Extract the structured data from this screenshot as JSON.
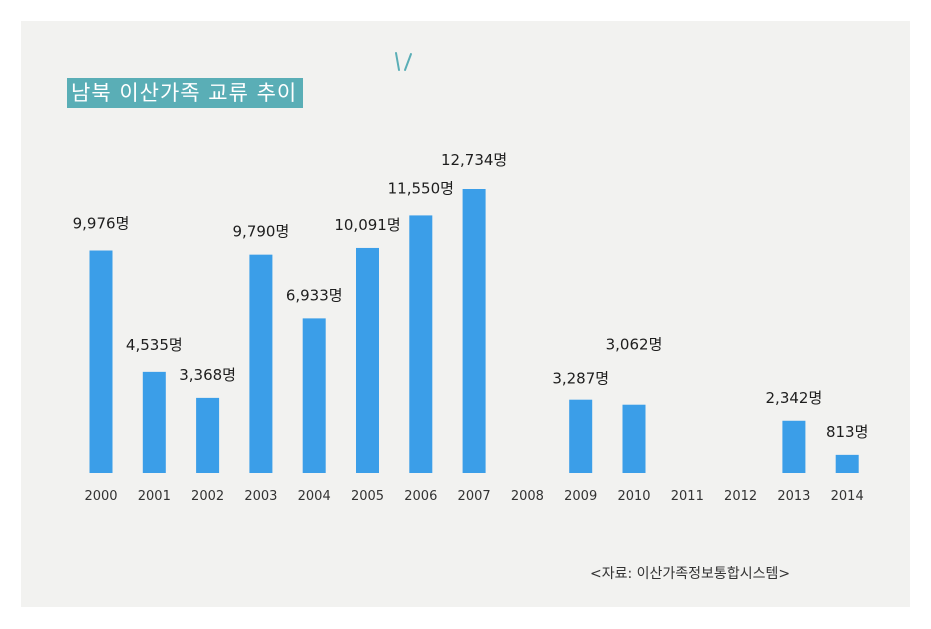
{
  "chart_data": {
    "type": "bar",
    "title": "남북 이산가족 교류 추이",
    "categories": [
      "2000",
      "2001",
      "2002",
      "2003",
      "2004",
      "2005",
      "2006",
      "2007",
      "2008",
      "2009",
      "2010",
      "2011",
      "2012",
      "2013",
      "2014"
    ],
    "values": [
      9976,
      4535,
      3368,
      9790,
      6933,
      10091,
      11550,
      12734,
      null,
      3287,
      3062,
      null,
      null,
      2342,
      813
    ],
    "data_labels": [
      "9,976명",
      "4,535명",
      "3,368명",
      "9,790명",
      "6,933명",
      "10,091명",
      "11,550명",
      "12,734명",
      "",
      "3,287명",
      "3,062명",
      "",
      "",
      "2,342명",
      "813명"
    ],
    "ylim": [
      0,
      12734
    ],
    "grid": false,
    "legend": "none",
    "bar_color": "#3b9ee8",
    "source": "<자료: 이산가족정보통합시스템>"
  },
  "colors": {
    "background": "#f2f2f0",
    "title_bg": "#5aaeb6",
    "accent_marks": "#5aaeb6"
  }
}
